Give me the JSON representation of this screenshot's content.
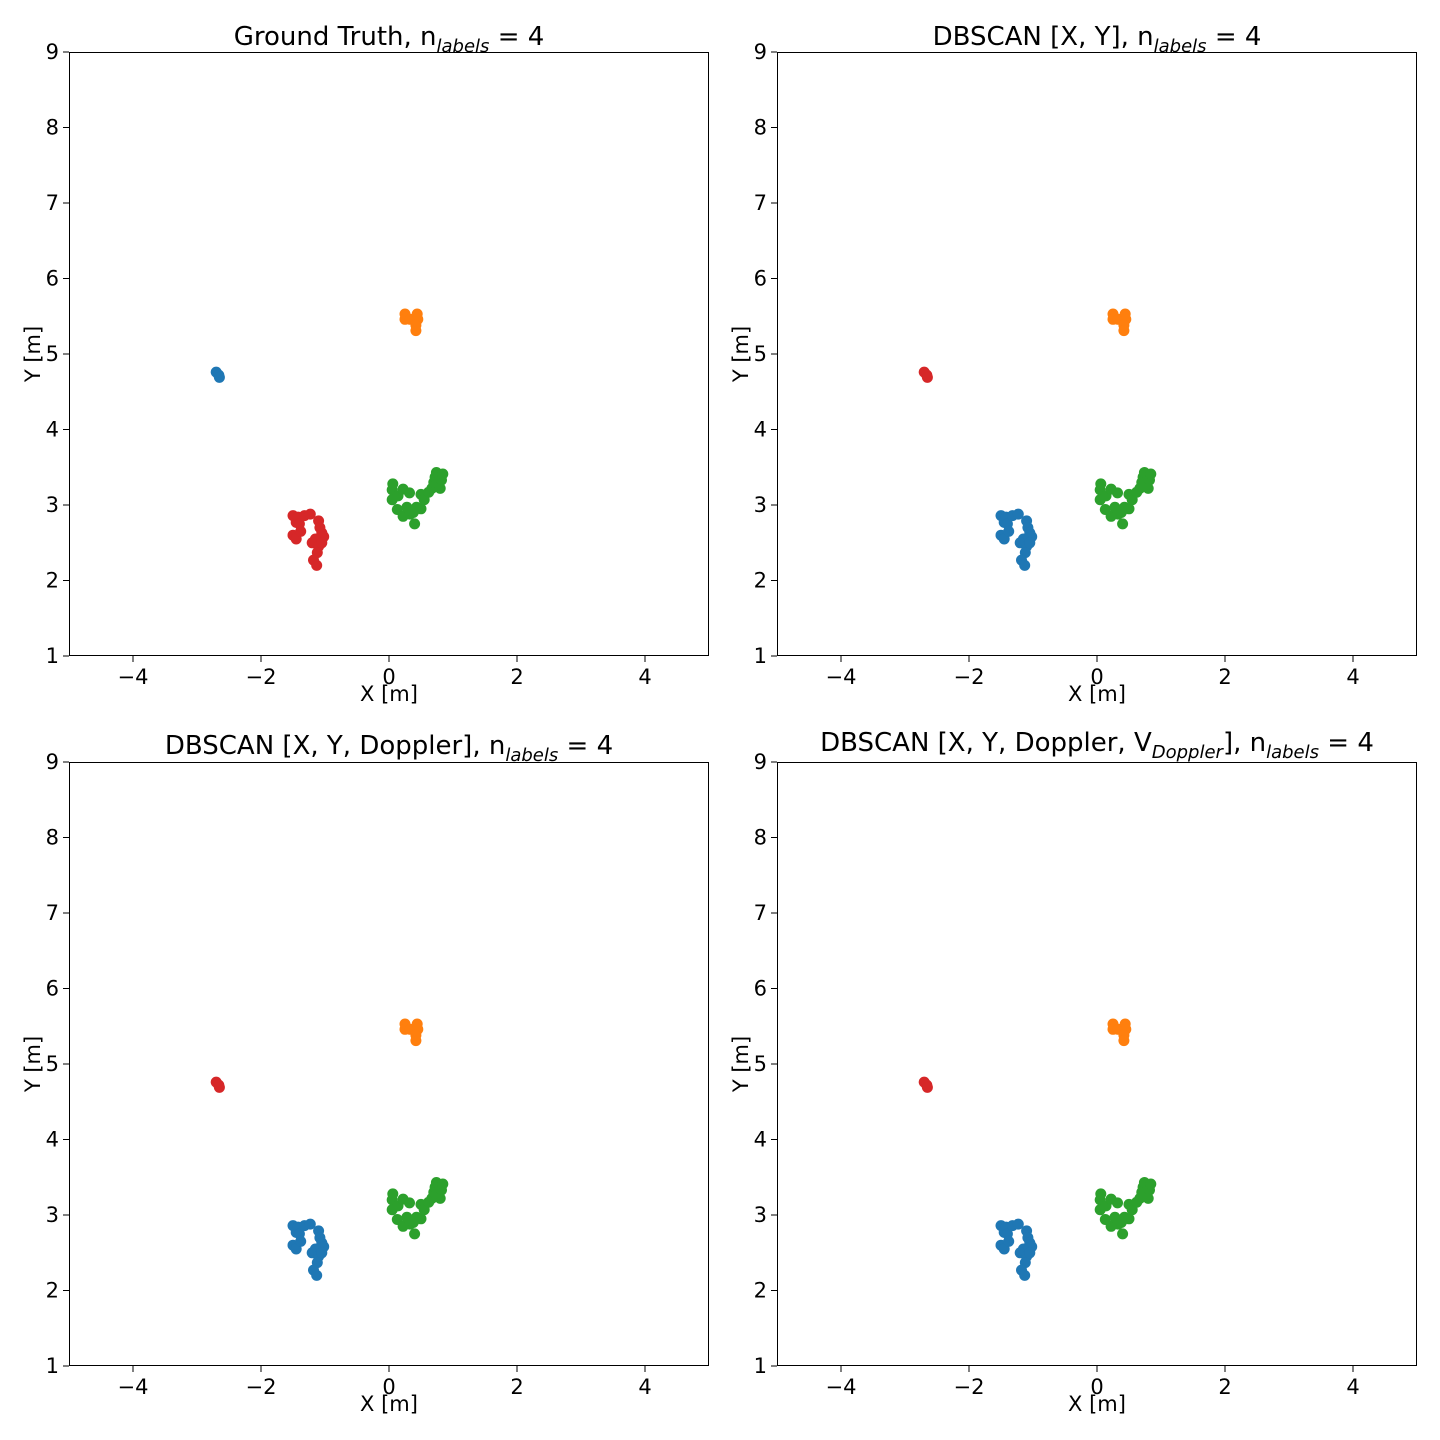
{
  "colors": {
    "c0": "#1f77b4",
    "c1": "#ff7f0e",
    "c2": "#2ca02c",
    "c3": "#d62728"
  },
  "chart_data": [
    {
      "type": "scatter",
      "title": {
        "pre": "Ground Truth, n",
        "sub": "labels",
        "post": " = 4"
      },
      "xlabel": "X [m]",
      "ylabel": "Y [m]",
      "xlim": [
        -5,
        5
      ],
      "ylim": [
        1,
        9
      ],
      "xticks": [
        "−4",
        "−2",
        "0",
        "2",
        "4"
      ],
      "yticks": [
        "1",
        "2",
        "3",
        "4",
        "5",
        "6",
        "7",
        "8",
        "9"
      ],
      "grid": false,
      "series": [
        {
          "color": "#1f77b4",
          "points": [
            [
              -2.7,
              4.76
            ],
            [
              -2.66,
              4.72
            ],
            [
              -2.65,
              4.69
            ]
          ]
        },
        {
          "color": "#ff7f0e",
          "points": [
            [
              0.25,
              5.53
            ],
            [
              0.25,
              5.46
            ],
            [
              0.33,
              5.46
            ],
            [
              0.44,
              5.53
            ],
            [
              0.45,
              5.46
            ],
            [
              0.42,
              5.38
            ],
            [
              0.42,
              5.31
            ]
          ]
        },
        {
          "color": "#2ca02c",
          "points": [
            [
              0.06,
              3.28
            ],
            [
              0.05,
              3.2
            ],
            [
              0.05,
              3.07
            ],
            [
              0.14,
              3.12
            ],
            [
              0.13,
              2.94
            ],
            [
              0.22,
              3.21
            ],
            [
              0.22,
              2.85
            ],
            [
              0.28,
              2.97
            ],
            [
              0.32,
              3.16
            ],
            [
              0.33,
              2.88
            ],
            [
              0.4,
              2.75
            ],
            [
              0.43,
              2.97
            ],
            [
              0.5,
              2.95
            ],
            [
              0.5,
              3.14
            ],
            [
              0.55,
              3.07
            ],
            [
              0.62,
              3.17
            ],
            [
              0.67,
              3.22
            ],
            [
              0.7,
              3.3
            ],
            [
              0.72,
              3.37
            ],
            [
              0.74,
              3.43
            ],
            [
              0.8,
              3.22
            ],
            [
              0.82,
              3.33
            ],
            [
              0.84,
              3.41
            ],
            [
              0.38,
              2.9
            ]
          ]
        },
        {
          "color": "#d62728",
          "points": [
            [
              -1.5,
              2.86
            ],
            [
              -1.45,
              2.77
            ],
            [
              -1.42,
              2.84
            ],
            [
              -1.4,
              2.75
            ],
            [
              -1.32,
              2.86
            ],
            [
              -1.23,
              2.88
            ],
            [
              -1.5,
              2.6
            ],
            [
              -1.45,
              2.55
            ],
            [
              -1.38,
              2.65
            ],
            [
              -1.1,
              2.79
            ],
            [
              -1.08,
              2.7
            ],
            [
              -1.05,
              2.63
            ],
            [
              -1.02,
              2.58
            ],
            [
              -1.15,
              2.55
            ],
            [
              -1.2,
              2.5
            ],
            [
              -1.1,
              2.45
            ],
            [
              -1.12,
              2.37
            ],
            [
              -1.18,
              2.27
            ],
            [
              -1.13,
              2.2
            ],
            [
              -1.05,
              2.5
            ]
          ]
        }
      ]
    },
    {
      "type": "scatter",
      "title": {
        "pre": "DBSCAN [X, Y], n",
        "sub": "labels",
        "post": " = 4"
      },
      "xlabel": "X [m]",
      "ylabel": "Y [m]",
      "xlim": [
        -5,
        5
      ],
      "ylim": [
        1,
        9
      ],
      "xticks": [
        "−4",
        "−2",
        "0",
        "2",
        "4"
      ],
      "yticks": [
        "1",
        "2",
        "3",
        "4",
        "5",
        "6",
        "7",
        "8",
        "9"
      ],
      "grid": false,
      "series": [
        {
          "color": "#d62728",
          "points": [
            [
              -2.7,
              4.76
            ],
            [
              -2.66,
              4.72
            ],
            [
              -2.65,
              4.69
            ]
          ]
        },
        {
          "color": "#ff7f0e",
          "points": [
            [
              0.25,
              5.53
            ],
            [
              0.25,
              5.46
            ],
            [
              0.33,
              5.46
            ],
            [
              0.44,
              5.53
            ],
            [
              0.45,
              5.46
            ],
            [
              0.42,
              5.38
            ],
            [
              0.42,
              5.31
            ]
          ]
        },
        {
          "color": "#2ca02c",
          "points": [
            [
              0.06,
              3.28
            ],
            [
              0.05,
              3.2
            ],
            [
              0.05,
              3.07
            ],
            [
              0.14,
              3.12
            ],
            [
              0.13,
              2.94
            ],
            [
              0.22,
              3.21
            ],
            [
              0.22,
              2.85
            ],
            [
              0.28,
              2.97
            ],
            [
              0.32,
              3.16
            ],
            [
              0.33,
              2.88
            ],
            [
              0.4,
              2.75
            ],
            [
              0.43,
              2.97
            ],
            [
              0.5,
              2.95
            ],
            [
              0.5,
              3.14
            ],
            [
              0.55,
              3.07
            ],
            [
              0.62,
              3.17
            ],
            [
              0.67,
              3.22
            ],
            [
              0.7,
              3.3
            ],
            [
              0.72,
              3.37
            ],
            [
              0.74,
              3.43
            ],
            [
              0.8,
              3.22
            ],
            [
              0.82,
              3.33
            ],
            [
              0.84,
              3.41
            ],
            [
              0.38,
              2.9
            ]
          ]
        },
        {
          "color": "#1f77b4",
          "points": [
            [
              -1.5,
              2.86
            ],
            [
              -1.45,
              2.77
            ],
            [
              -1.42,
              2.84
            ],
            [
              -1.4,
              2.75
            ],
            [
              -1.32,
              2.86
            ],
            [
              -1.23,
              2.88
            ],
            [
              -1.5,
              2.6
            ],
            [
              -1.45,
              2.55
            ],
            [
              -1.38,
              2.65
            ],
            [
              -1.1,
              2.79
            ],
            [
              -1.08,
              2.7
            ],
            [
              -1.05,
              2.63
            ],
            [
              -1.02,
              2.58
            ],
            [
              -1.15,
              2.55
            ],
            [
              -1.2,
              2.5
            ],
            [
              -1.1,
              2.45
            ],
            [
              -1.12,
              2.37
            ],
            [
              -1.18,
              2.27
            ],
            [
              -1.13,
              2.2
            ],
            [
              -1.05,
              2.5
            ]
          ]
        }
      ]
    },
    {
      "type": "scatter",
      "title": {
        "pre": "DBSCAN [X, Y, Doppler], n",
        "sub": "labels",
        "post": " = 4"
      },
      "xlabel": "X [m]",
      "ylabel": "Y [m]",
      "xlim": [
        -5,
        5
      ],
      "ylim": [
        1,
        9
      ],
      "xticks": [
        "−4",
        "−2",
        "0",
        "2",
        "4"
      ],
      "yticks": [
        "1",
        "2",
        "3",
        "4",
        "5",
        "6",
        "7",
        "8",
        "9"
      ],
      "grid": false,
      "series": [
        {
          "color": "#d62728",
          "points": [
            [
              -2.7,
              4.76
            ],
            [
              -2.66,
              4.72
            ],
            [
              -2.65,
              4.69
            ]
          ]
        },
        {
          "color": "#ff7f0e",
          "points": [
            [
              0.25,
              5.53
            ],
            [
              0.25,
              5.46
            ],
            [
              0.33,
              5.46
            ],
            [
              0.44,
              5.53
            ],
            [
              0.45,
              5.46
            ],
            [
              0.42,
              5.38
            ],
            [
              0.42,
              5.31
            ]
          ]
        },
        {
          "color": "#2ca02c",
          "points": [
            [
              0.06,
              3.28
            ],
            [
              0.05,
              3.2
            ],
            [
              0.05,
              3.07
            ],
            [
              0.14,
              3.12
            ],
            [
              0.13,
              2.94
            ],
            [
              0.22,
              3.21
            ],
            [
              0.22,
              2.85
            ],
            [
              0.28,
              2.97
            ],
            [
              0.32,
              3.16
            ],
            [
              0.33,
              2.88
            ],
            [
              0.4,
              2.75
            ],
            [
              0.43,
              2.97
            ],
            [
              0.5,
              2.95
            ],
            [
              0.5,
              3.14
            ],
            [
              0.55,
              3.07
            ],
            [
              0.62,
              3.17
            ],
            [
              0.67,
              3.22
            ],
            [
              0.7,
              3.3
            ],
            [
              0.72,
              3.37
            ],
            [
              0.74,
              3.43
            ],
            [
              0.8,
              3.22
            ],
            [
              0.82,
              3.33
            ],
            [
              0.84,
              3.41
            ],
            [
              0.38,
              2.9
            ]
          ]
        },
        {
          "color": "#1f77b4",
          "points": [
            [
              -1.5,
              2.86
            ],
            [
              -1.45,
              2.77
            ],
            [
              -1.42,
              2.84
            ],
            [
              -1.4,
              2.75
            ],
            [
              -1.32,
              2.86
            ],
            [
              -1.23,
              2.88
            ],
            [
              -1.5,
              2.6
            ],
            [
              -1.45,
              2.55
            ],
            [
              -1.38,
              2.65
            ],
            [
              -1.1,
              2.79
            ],
            [
              -1.08,
              2.7
            ],
            [
              -1.05,
              2.63
            ],
            [
              -1.02,
              2.58
            ],
            [
              -1.15,
              2.55
            ],
            [
              -1.2,
              2.5
            ],
            [
              -1.1,
              2.45
            ],
            [
              -1.12,
              2.37
            ],
            [
              -1.18,
              2.27
            ],
            [
              -1.13,
              2.2
            ],
            [
              -1.05,
              2.5
            ]
          ]
        }
      ]
    },
    {
      "type": "scatter",
      "title": {
        "pre": "DBSCAN [X, Y, Doppler, V",
        "sub": "Doppler",
        "mid": "], n",
        "sub2": "labels",
        "post": " = 4"
      },
      "xlabel": "X [m]",
      "ylabel": "Y [m]",
      "xlim": [
        -5,
        5
      ],
      "ylim": [
        1,
        9
      ],
      "xticks": [
        "−4",
        "−2",
        "0",
        "2",
        "4"
      ],
      "yticks": [
        "1",
        "2",
        "3",
        "4",
        "5",
        "6",
        "7",
        "8",
        "9"
      ],
      "grid": false,
      "series": [
        {
          "color": "#d62728",
          "points": [
            [
              -2.7,
              4.76
            ],
            [
              -2.66,
              4.72
            ],
            [
              -2.65,
              4.69
            ]
          ]
        },
        {
          "color": "#ff7f0e",
          "points": [
            [
              0.25,
              5.53
            ],
            [
              0.25,
              5.46
            ],
            [
              0.33,
              5.46
            ],
            [
              0.44,
              5.53
            ],
            [
              0.45,
              5.46
            ],
            [
              0.42,
              5.38
            ],
            [
              0.42,
              5.31
            ]
          ]
        },
        {
          "color": "#2ca02c",
          "points": [
            [
              0.06,
              3.28
            ],
            [
              0.05,
              3.2
            ],
            [
              0.05,
              3.07
            ],
            [
              0.14,
              3.12
            ],
            [
              0.13,
              2.94
            ],
            [
              0.22,
              3.21
            ],
            [
              0.22,
              2.85
            ],
            [
              0.28,
              2.97
            ],
            [
              0.32,
              3.16
            ],
            [
              0.33,
              2.88
            ],
            [
              0.4,
              2.75
            ],
            [
              0.43,
              2.97
            ],
            [
              0.5,
              2.95
            ],
            [
              0.5,
              3.14
            ],
            [
              0.55,
              3.07
            ],
            [
              0.62,
              3.17
            ],
            [
              0.67,
              3.22
            ],
            [
              0.7,
              3.3
            ],
            [
              0.72,
              3.37
            ],
            [
              0.74,
              3.43
            ],
            [
              0.8,
              3.22
            ],
            [
              0.82,
              3.33
            ],
            [
              0.84,
              3.41
            ],
            [
              0.38,
              2.9
            ]
          ]
        },
        {
          "color": "#1f77b4",
          "points": [
            [
              -1.5,
              2.86
            ],
            [
              -1.45,
              2.77
            ],
            [
              -1.42,
              2.84
            ],
            [
              -1.4,
              2.75
            ],
            [
              -1.32,
              2.86
            ],
            [
              -1.23,
              2.88
            ],
            [
              -1.5,
              2.6
            ],
            [
              -1.45,
              2.55
            ],
            [
              -1.38,
              2.65
            ],
            [
              -1.1,
              2.79
            ],
            [
              -1.08,
              2.7
            ],
            [
              -1.05,
              2.63
            ],
            [
              -1.02,
              2.58
            ],
            [
              -1.15,
              2.55
            ],
            [
              -1.2,
              2.5
            ],
            [
              -1.1,
              2.45
            ],
            [
              -1.12,
              2.37
            ],
            [
              -1.18,
              2.27
            ],
            [
              -1.13,
              2.2
            ],
            [
              -1.05,
              2.5
            ]
          ]
        }
      ]
    }
  ]
}
